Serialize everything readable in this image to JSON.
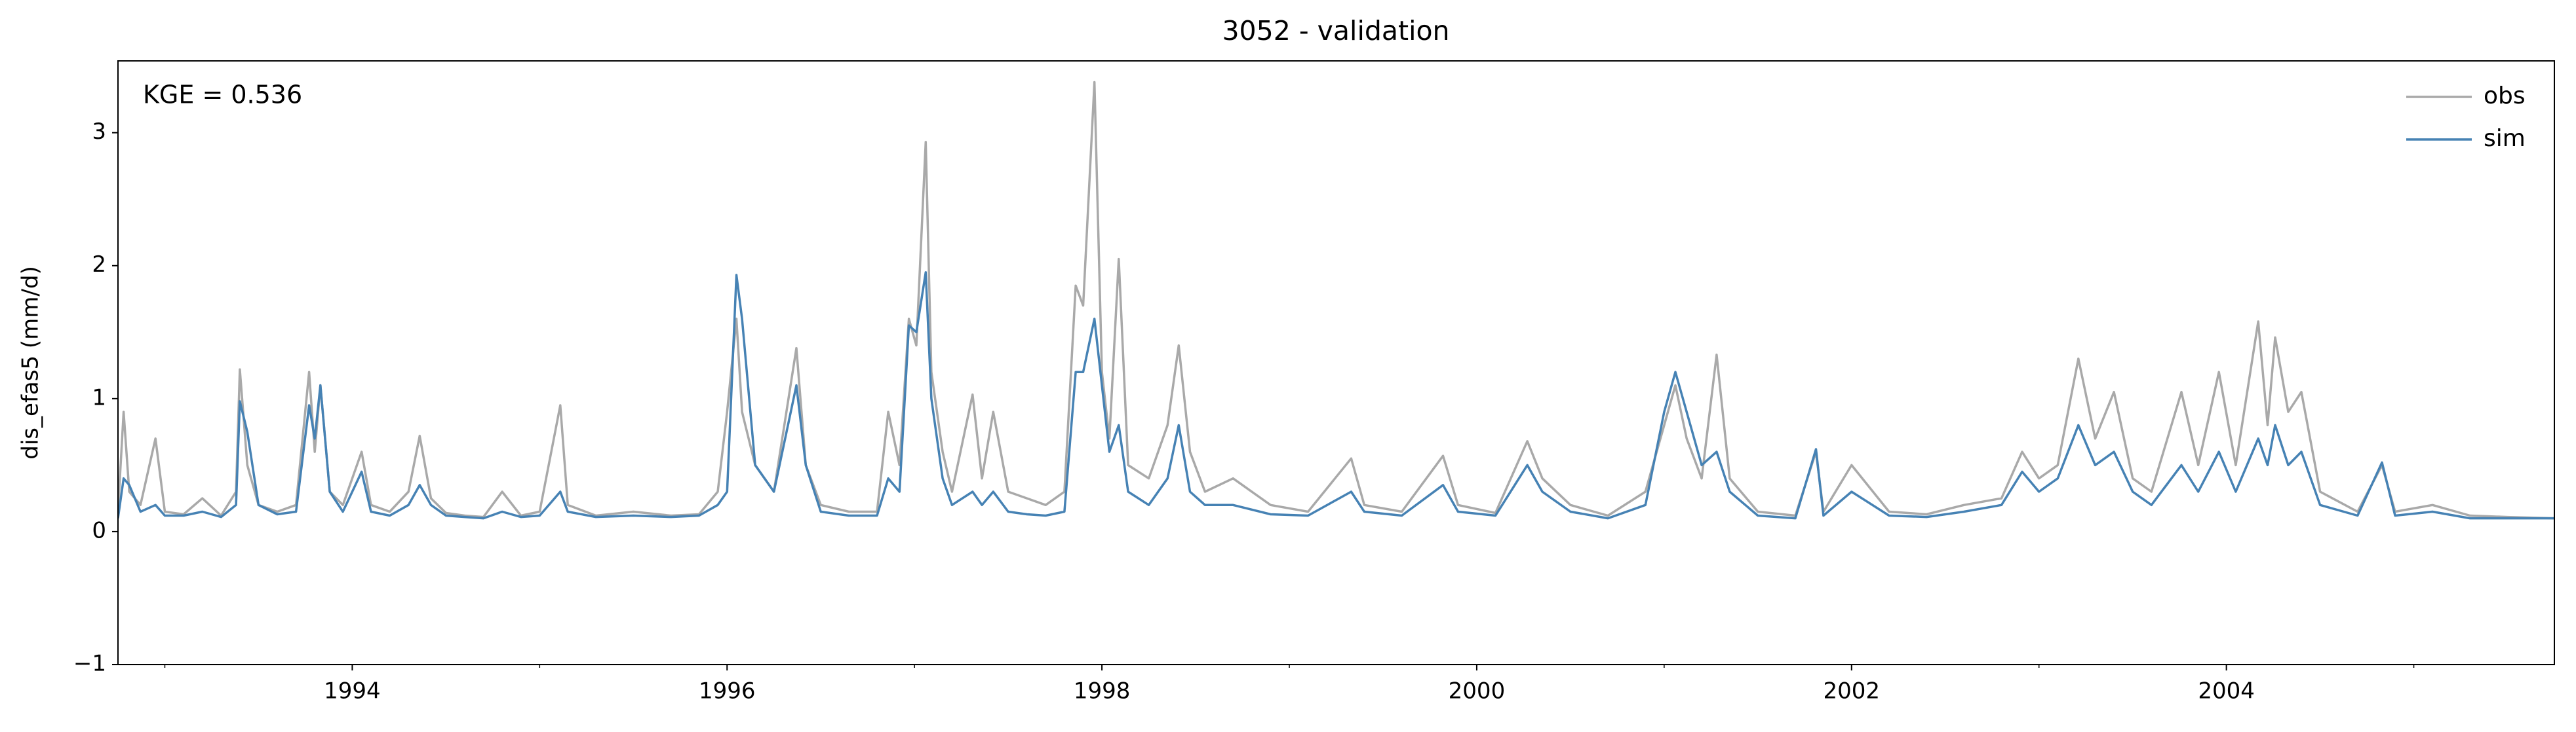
{
  "chart_data": {
    "type": "line",
    "title": "3052 - validation",
    "ylabel": "dis_efas5 (mm/d)",
    "annotation": "KGE = 0.536",
    "legend": "upper right",
    "grid": false,
    "xlim": [
      1992.75,
      2005.75
    ],
    "xticks": [
      1994,
      1996,
      1998,
      2000,
      2002,
      2004
    ],
    "xminorticks": [
      1993,
      1995,
      1997,
      1999,
      2001,
      2003,
      2005
    ],
    "ylim": [
      -1,
      3.54
    ],
    "yticks": [
      {
        "value": -1,
        "label": "−1"
      },
      0,
      1,
      2,
      3
    ],
    "x": [
      1992.75,
      1992.78,
      1992.81,
      1992.87,
      1992.95,
      1993.0,
      1993.1,
      1993.2,
      1993.3,
      1993.38,
      1993.4,
      1993.44,
      1993.5,
      1993.6,
      1993.7,
      1993.77,
      1993.8,
      1993.83,
      1993.88,
      1993.95,
      1994.05,
      1994.1,
      1994.2,
      1994.3,
      1994.36,
      1994.42,
      1994.5,
      1994.6,
      1994.7,
      1994.8,
      1994.9,
      1995.0,
      1995.11,
      1995.15,
      1995.3,
      1995.5,
      1995.7,
      1995.85,
      1995.95,
      1996.0,
      1996.05,
      1996.08,
      1996.15,
      1996.25,
      1996.37,
      1996.42,
      1996.5,
      1996.65,
      1996.8,
      1996.86,
      1996.92,
      1996.97,
      1997.01,
      1997.06,
      1997.09,
      1997.15,
      1997.2,
      1997.31,
      1997.36,
      1997.42,
      1997.5,
      1997.6,
      1997.7,
      1997.8,
      1997.86,
      1997.9,
      1997.96,
      1998.0,
      1998.04,
      1998.09,
      1998.14,
      1998.25,
      1998.35,
      1998.41,
      1998.47,
      1998.55,
      1998.7,
      1998.9,
      1999.1,
      1999.33,
      1999.4,
      1999.6,
      1999.82,
      1999.9,
      2000.1,
      2000.27,
      2000.35,
      2000.5,
      2000.7,
      2000.9,
      2001.0,
      2001.06,
      2001.12,
      2001.2,
      2001.28,
      2001.35,
      2001.5,
      2001.7,
      2001.81,
      2001.85,
      2002.0,
      2002.2,
      2002.4,
      2002.6,
      2002.8,
      2002.91,
      2003.0,
      2003.1,
      2003.21,
      2003.3,
      2003.4,
      2003.5,
      2003.6,
      2003.76,
      2003.85,
      2003.96,
      2004.05,
      2004.17,
      2004.22,
      2004.26,
      2004.33,
      2004.4,
      2004.5,
      2004.7,
      2004.83,
      2004.9,
      2005.1,
      2005.3,
      2005.5,
      2005.75
    ],
    "series": [
      {
        "name": "obs",
        "color": "#a9a9a9",
        "values": [
          0.15,
          0.9,
          0.3,
          0.2,
          0.7,
          0.15,
          0.13,
          0.25,
          0.12,
          0.3,
          1.22,
          0.5,
          0.2,
          0.15,
          0.2,
          1.2,
          0.6,
          1.1,
          0.3,
          0.2,
          0.6,
          0.2,
          0.15,
          0.3,
          0.72,
          0.25,
          0.14,
          0.12,
          0.11,
          0.3,
          0.12,
          0.15,
          0.95,
          0.2,
          0.12,
          0.15,
          0.12,
          0.13,
          0.3,
          0.9,
          1.6,
          0.9,
          0.5,
          0.3,
          1.38,
          0.5,
          0.2,
          0.15,
          0.15,
          0.9,
          0.5,
          1.6,
          1.4,
          2.93,
          1.2,
          0.6,
          0.3,
          1.03,
          0.4,
          0.9,
          0.3,
          0.25,
          0.2,
          0.3,
          1.85,
          1.7,
          3.38,
          1.2,
          0.7,
          2.05,
          0.5,
          0.4,
          0.8,
          1.4,
          0.6,
          0.3,
          0.4,
          0.2,
          0.15,
          0.55,
          0.2,
          0.15,
          0.57,
          0.2,
          0.14,
          0.68,
          0.4,
          0.2,
          0.12,
          0.3,
          0.8,
          1.1,
          0.7,
          0.4,
          1.33,
          0.4,
          0.15,
          0.12,
          0.6,
          0.15,
          0.5,
          0.15,
          0.13,
          0.2,
          0.25,
          0.6,
          0.4,
          0.5,
          1.3,
          0.7,
          1.05,
          0.4,
          0.3,
          1.05,
          0.5,
          1.2,
          0.5,
          1.58,
          0.8,
          1.46,
          0.9,
          1.05,
          0.3,
          0.15,
          0.5,
          0.15,
          0.2,
          0.12,
          0.11,
          0.1
        ]
      },
      {
        "name": "sim",
        "color": "#4682b4",
        "values": [
          0.1,
          0.4,
          0.35,
          0.15,
          0.2,
          0.12,
          0.12,
          0.15,
          0.11,
          0.2,
          0.98,
          0.75,
          0.2,
          0.13,
          0.15,
          0.95,
          0.7,
          1.1,
          0.3,
          0.15,
          0.45,
          0.15,
          0.12,
          0.2,
          0.35,
          0.2,
          0.12,
          0.11,
          0.1,
          0.15,
          0.11,
          0.12,
          0.3,
          0.15,
          0.11,
          0.12,
          0.11,
          0.12,
          0.2,
          0.3,
          1.93,
          1.6,
          0.5,
          0.3,
          1.1,
          0.5,
          0.15,
          0.12,
          0.12,
          0.4,
          0.3,
          1.55,
          1.5,
          1.95,
          1.0,
          0.4,
          0.2,
          0.3,
          0.2,
          0.3,
          0.15,
          0.13,
          0.12,
          0.15,
          1.2,
          1.2,
          1.6,
          1.1,
          0.6,
          0.8,
          0.3,
          0.2,
          0.4,
          0.8,
          0.3,
          0.2,
          0.2,
          0.13,
          0.12,
          0.3,
          0.15,
          0.12,
          0.35,
          0.15,
          0.12,
          0.5,
          0.3,
          0.15,
          0.1,
          0.2,
          0.9,
          1.2,
          0.9,
          0.5,
          0.6,
          0.3,
          0.12,
          0.1,
          0.62,
          0.12,
          0.3,
          0.12,
          0.11,
          0.15,
          0.2,
          0.45,
          0.3,
          0.4,
          0.8,
          0.5,
          0.6,
          0.3,
          0.2,
          0.5,
          0.3,
          0.6,
          0.3,
          0.7,
          0.5,
          0.8,
          0.5,
          0.6,
          0.2,
          0.12,
          0.52,
          0.12,
          0.15,
          0.1,
          0.1,
          0.1
        ]
      }
    ]
  }
}
